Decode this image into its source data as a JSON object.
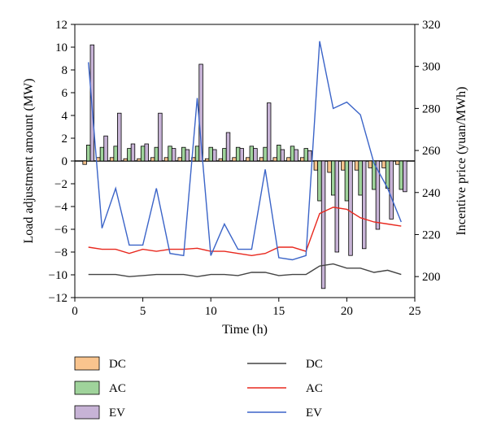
{
  "chart_data": {
    "type": "bar+line",
    "title": "",
    "xlabel": "Time (h)",
    "ylabel_left": "Load adjustment amount (MW)",
    "ylabel_right": "Incentive price (yuan/MWh)",
    "xlim": [
      0,
      25
    ],
    "ylim_left": [
      -12,
      12
    ],
    "ylim_right": [
      190,
      320
    ],
    "x_ticks": [
      "0",
      "5",
      "10",
      "15",
      "20",
      "25"
    ],
    "y_ticks_left": [
      "-12",
      "-10",
      "-8",
      "-6",
      "-4",
      "-2",
      "0",
      "2",
      "4",
      "6",
      "8",
      "10",
      "12"
    ],
    "y_ticks_right": [
      "200",
      "220",
      "240",
      "260",
      "280",
      "300",
      "320"
    ],
    "hours": [
      1,
      2,
      3,
      4,
      5,
      6,
      7,
      8,
      9,
      10,
      11,
      12,
      13,
      14,
      15,
      16,
      17,
      18,
      19,
      20,
      21,
      22,
      23,
      24
    ],
    "bar_series": [
      {
        "name": "DC",
        "color": "#f9c48e",
        "values": [
          -0.3,
          0.3,
          0.3,
          0.2,
          0.2,
          0.3,
          0.3,
          0.3,
          0.3,
          0.2,
          0.2,
          0.3,
          0.3,
          0.3,
          0.3,
          0.3,
          0.3,
          -0.8,
          -1.0,
          -0.8,
          -0.8,
          -0.6,
          -0.6,
          -0.3
        ]
      },
      {
        "name": "AC",
        "color": "#9fd39b",
        "values": [
          1.4,
          1.2,
          1.3,
          1.1,
          1.3,
          1.2,
          1.3,
          1.2,
          1.3,
          1.2,
          1.1,
          1.2,
          1.3,
          1.2,
          1.4,
          1.3,
          1.1,
          -3.5,
          -3.0,
          -3.5,
          -3.0,
          -2.5,
          -2.4,
          -2.5
        ]
      },
      {
        "name": "EV",
        "color": "#c7b3d6",
        "values": [
          10.2,
          2.2,
          4.2,
          1.5,
          1.5,
          4.2,
          1.1,
          1.0,
          8.5,
          1.0,
          2.5,
          1.1,
          1.1,
          5.1,
          1.0,
          1.0,
          0.9,
          -11.2,
          -8.0,
          -8.3,
          -7.7,
          -6.0,
          -5.1,
          -2.7
        ]
      }
    ],
    "line_series": [
      {
        "name": "DC",
        "color": "#444444",
        "values": [
          201,
          201,
          201,
          200,
          200.5,
          201,
          201,
          201,
          200,
          201,
          201,
          200.5,
          202,
          202,
          200.5,
          201,
          201,
          205,
          206,
          204,
          204,
          202,
          203,
          201
        ]
      },
      {
        "name": "AC",
        "color": "#e8281e",
        "values": [
          214,
          213,
          213,
          211,
          213,
          212,
          213,
          213,
          213.5,
          212,
          212,
          211,
          210,
          211,
          214,
          214,
          212,
          230,
          233,
          232,
          228,
          226,
          225,
          224
        ]
      },
      {
        "name": "EV",
        "color": "#3b64c8",
        "values": [
          302,
          223,
          242,
          215,
          215,
          242,
          211,
          210,
          285,
          210,
          225,
          213,
          213,
          251,
          209,
          208,
          210,
          312,
          280,
          283,
          277,
          254,
          242,
          226
        ]
      }
    ],
    "legend_placement": "bottom"
  }
}
